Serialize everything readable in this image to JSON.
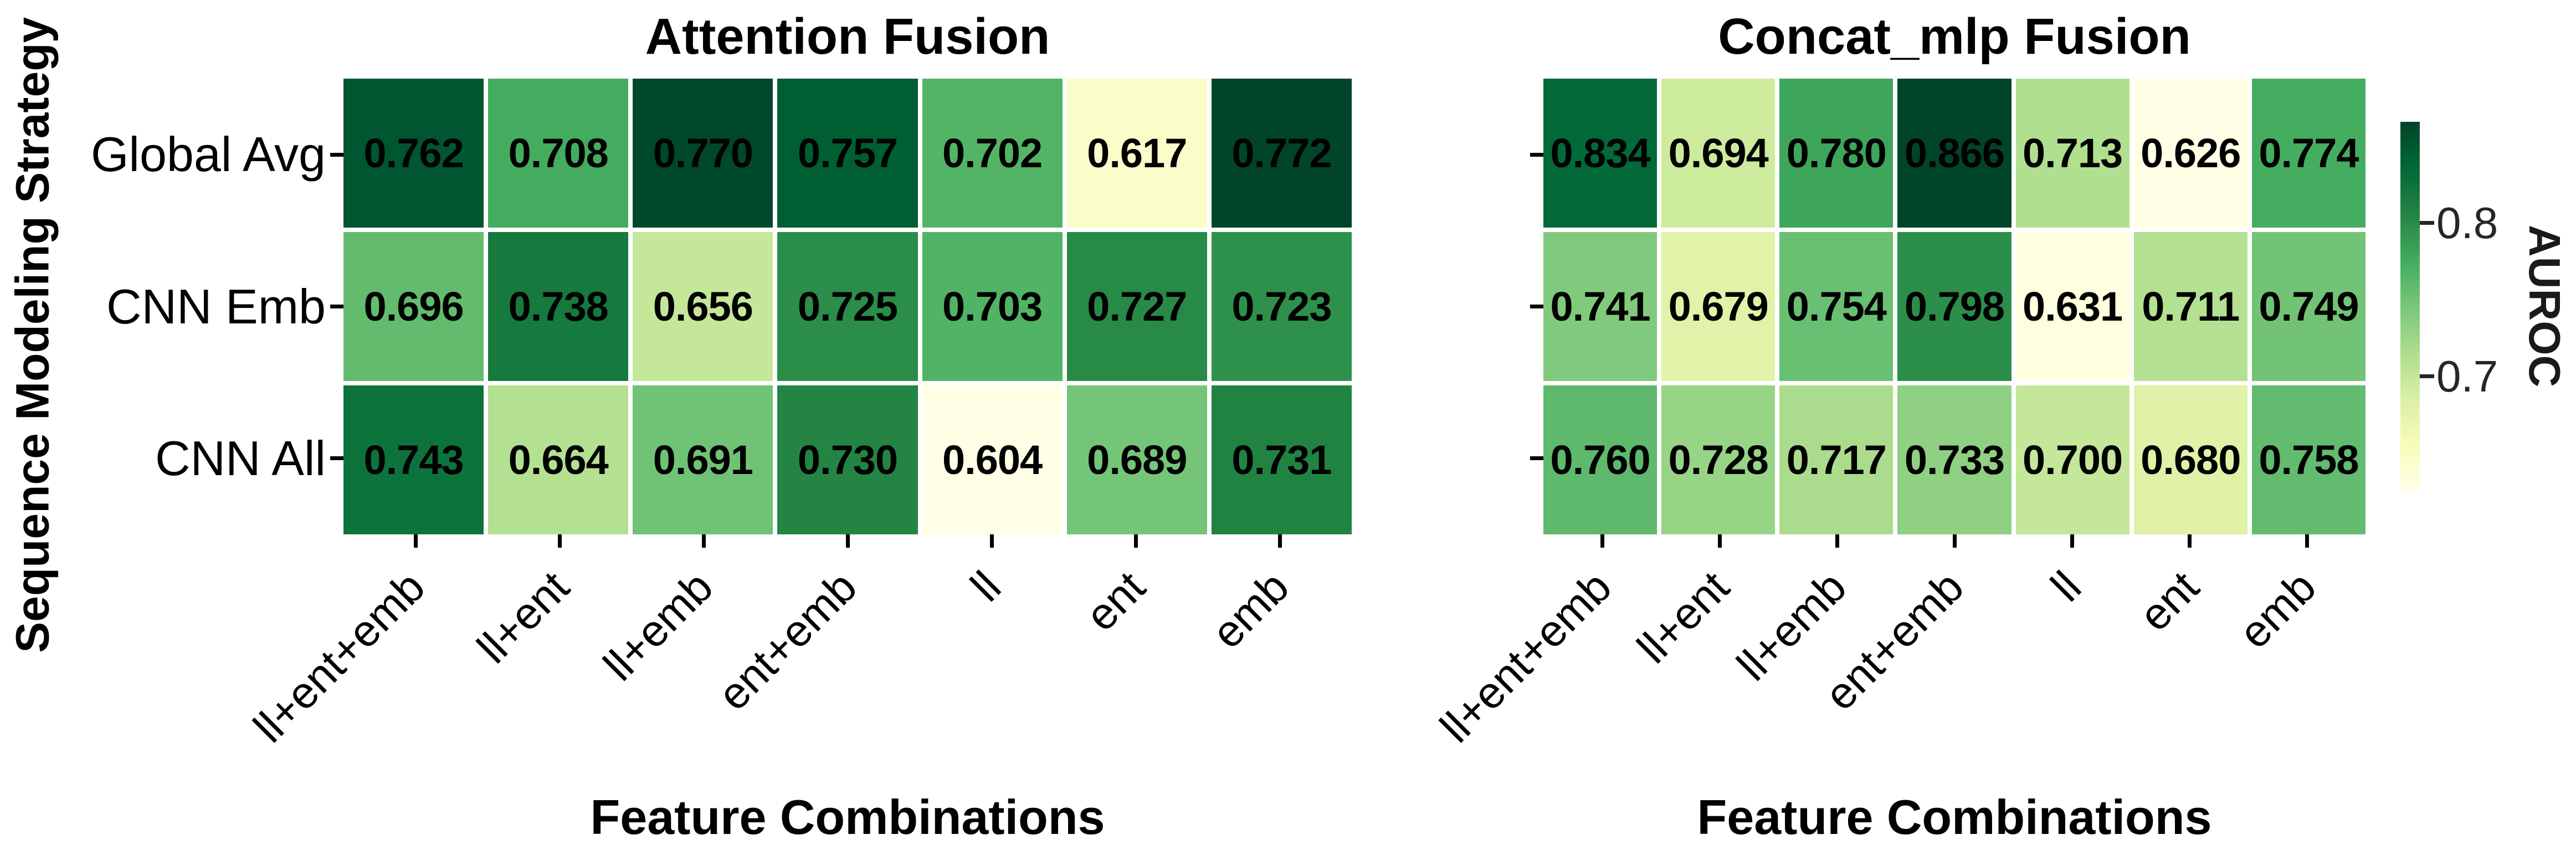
{
  "figure": {
    "background": "#ffffff",
    "text_color": "#000000",
    "tick_color": "#000000",
    "colorbar_text_color": "#262626"
  },
  "y_axis": {
    "label": "Sequence Modeling Strategy",
    "categories": [
      "Global Avg",
      "CNN Emb",
      "CNN All"
    ]
  },
  "x_axis": {
    "label": "Feature Combinations",
    "categories": [
      "ll+ent+emb",
      "ll+ent",
      "ll+emb",
      "ent+emb",
      "ll",
      "ent",
      "emb"
    ]
  },
  "colorbar": {
    "label": "AUROC",
    "vmin": 0.626,
    "vmax": 0.866,
    "ticks": [
      {
        "value": 0.8,
        "label": "0.8"
      },
      {
        "value": 0.7,
        "label": "0.7"
      }
    ]
  },
  "colormap": {
    "name": "YlGn",
    "stops": [
      "#ffffe5",
      "#f7fcb9",
      "#d9f0a3",
      "#addd8e",
      "#78c679",
      "#41ab5d",
      "#238443",
      "#006837",
      "#004529"
    ]
  },
  "chart_data": [
    {
      "type": "heatmap",
      "title": "Attention Fusion",
      "xlabel": "Feature Combinations",
      "ylabel": "Sequence Modeling Strategy",
      "rows": [
        "Global Avg",
        "CNN Emb",
        "CNN All"
      ],
      "columns": [
        "ll+ent+emb",
        "ll+ent",
        "ll+emb",
        "ent+emb",
        "ll",
        "ent",
        "emb"
      ],
      "values": [
        [
          0.762,
          0.708,
          0.77,
          0.757,
          0.702,
          0.617,
          0.772
        ],
        [
          0.696,
          0.738,
          0.656,
          0.725,
          0.703,
          0.727,
          0.723
        ],
        [
          0.743,
          0.664,
          0.691,
          0.73,
          0.604,
          0.689,
          0.731
        ]
      ],
      "value_decimals": 3,
      "color_scale": {
        "vmin": 0.604,
        "vmax": 0.772,
        "normalized_per_panel": true
      }
    },
    {
      "type": "heatmap",
      "title": "Concat_mlp Fusion",
      "xlabel": "Feature Combinations",
      "ylabel": "Sequence Modeling Strategy",
      "rows": [
        "Global Avg",
        "CNN Emb",
        "CNN All"
      ],
      "columns": [
        "ll+ent+emb",
        "ll+ent",
        "ll+emb",
        "ent+emb",
        "ll",
        "ent",
        "emb"
      ],
      "values": [
        [
          0.834,
          0.694,
          0.78,
          0.866,
          0.713,
          0.626,
          0.774
        ],
        [
          0.741,
          0.679,
          0.754,
          0.798,
          0.631,
          0.711,
          0.749
        ],
        [
          0.76,
          0.728,
          0.717,
          0.733,
          0.7,
          0.68,
          0.758
        ]
      ],
      "value_decimals": 3,
      "color_scale": {
        "vmin": 0.626,
        "vmax": 0.866,
        "normalized_per_panel": true
      }
    }
  ]
}
